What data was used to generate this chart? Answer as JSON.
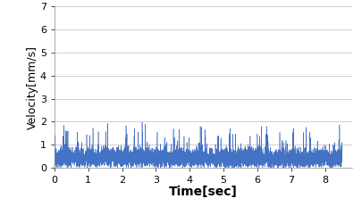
{
  "title": "",
  "xlabel": "Time[sec]",
  "ylabel": "Velocity[mm/s]",
  "xlim": [
    0,
    8.8
  ],
  "ylim": [
    0,
    7
  ],
  "xticks": [
    0,
    1,
    2,
    3,
    4,
    5,
    6,
    7,
    8
  ],
  "yticks": [
    0,
    1,
    2,
    3,
    4,
    5,
    6,
    7
  ],
  "line_color": "#4472C4",
  "background_color": "#ffffff",
  "grid_color": "#c8c8c8",
  "duration": 8.5,
  "num_points": 5000,
  "base_mean": 0.42,
  "base_std": 0.22,
  "spike_probability": 0.012,
  "spike_mean": 1.5,
  "spike_std": 0.25,
  "xlabel_fontsize": 10,
  "ylabel_fontsize": 9,
  "tick_fontsize": 8,
  "line_width": 0.4,
  "seed": 42
}
